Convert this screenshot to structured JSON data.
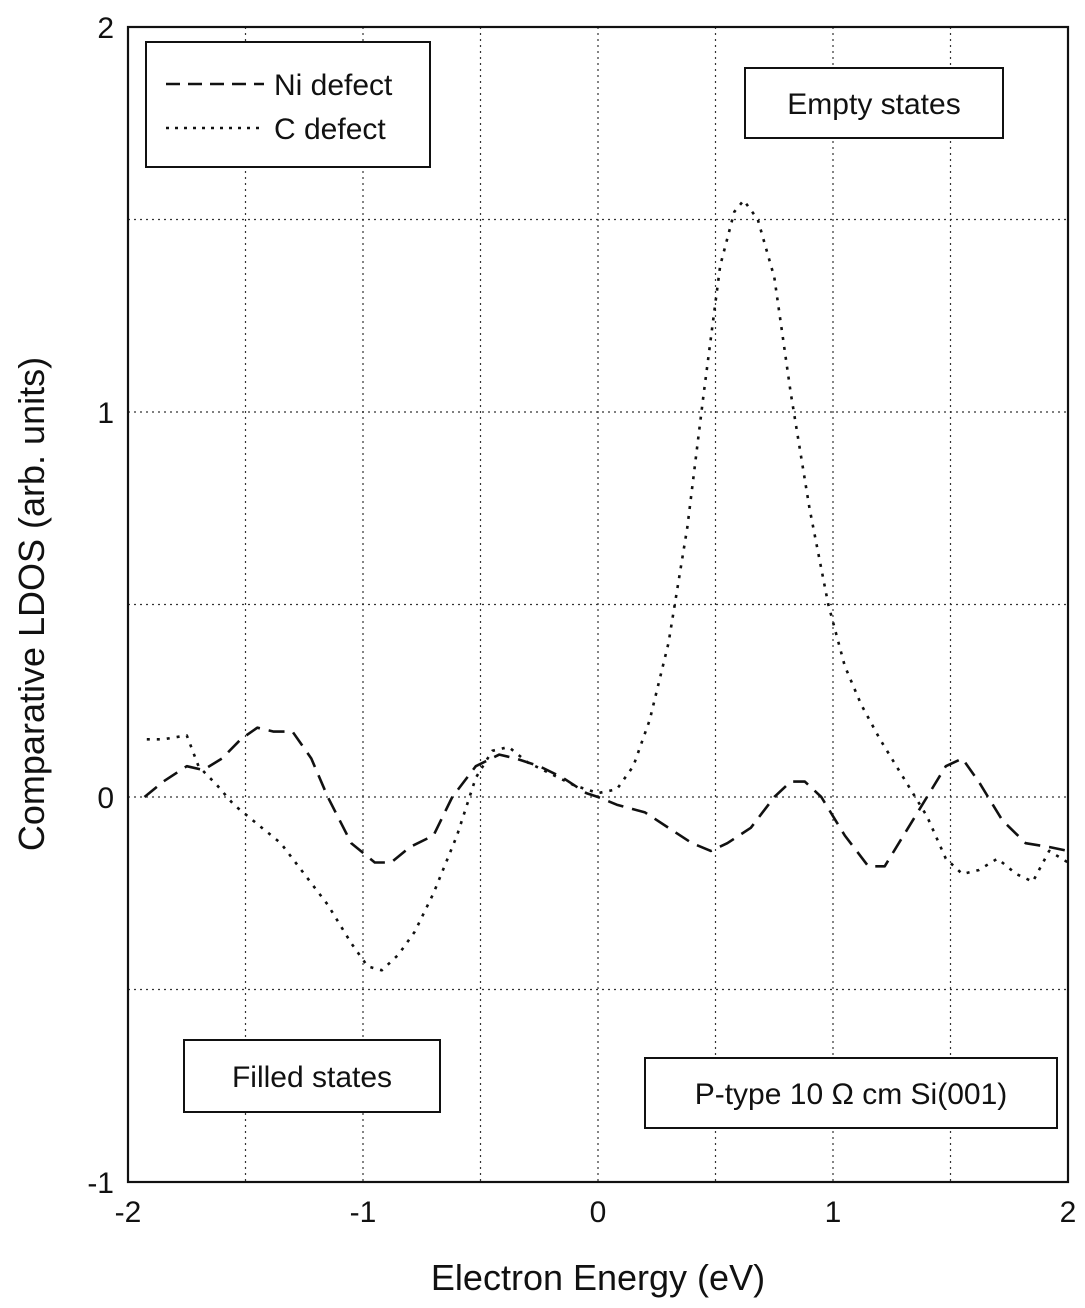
{
  "chart_data": {
    "type": "line",
    "title": "",
    "xlabel": "Electron Energy  (eV)",
    "ylabel": "Comparative LDOS  (arb. units)",
    "xlim": [
      -2,
      2
    ],
    "ylim": [
      -1,
      2
    ],
    "x_ticks": [
      -2,
      -1,
      0,
      1,
      2
    ],
    "y_ticks": [
      -1,
      0,
      1,
      2
    ],
    "x_tick_labels": [
      "-2",
      "-1",
      "0",
      "1",
      "2"
    ],
    "y_tick_labels": [
      "-1",
      "0",
      "1",
      "2"
    ],
    "grid": true,
    "grid_x_step": 0.5,
    "grid_y_step": 0.5,
    "legend_position": "top-left",
    "series": [
      {
        "name": "Ni defect",
        "style": "dashed",
        "points": [
          [
            -1.93,
            0.0
          ],
          [
            -1.85,
            0.04
          ],
          [
            -1.75,
            0.08
          ],
          [
            -1.68,
            0.07
          ],
          [
            -1.6,
            0.1
          ],
          [
            -1.52,
            0.15
          ],
          [
            -1.45,
            0.18
          ],
          [
            -1.38,
            0.17
          ],
          [
            -1.3,
            0.17
          ],
          [
            -1.22,
            0.1
          ],
          [
            -1.15,
            0.0
          ],
          [
            -1.05,
            -0.12
          ],
          [
            -0.95,
            -0.17
          ],
          [
            -0.88,
            -0.17
          ],
          [
            -0.8,
            -0.13
          ],
          [
            -0.7,
            -0.1
          ],
          [
            -0.62,
            0.0
          ],
          [
            -0.52,
            0.08
          ],
          [
            -0.42,
            0.11
          ],
          [
            -0.35,
            0.1
          ],
          [
            -0.25,
            0.08
          ],
          [
            -0.15,
            0.05
          ],
          [
            -0.05,
            0.01
          ],
          [
            0.0,
            0.0
          ],
          [
            0.08,
            -0.02
          ],
          [
            0.2,
            -0.04
          ],
          [
            0.3,
            -0.08
          ],
          [
            0.4,
            -0.12
          ],
          [
            0.48,
            -0.14
          ],
          [
            0.55,
            -0.12
          ],
          [
            0.65,
            -0.08
          ],
          [
            0.75,
            0.0
          ],
          [
            0.82,
            0.04
          ],
          [
            0.88,
            0.04
          ],
          [
            0.95,
            0.0
          ],
          [
            1.05,
            -0.1
          ],
          [
            1.15,
            -0.18
          ],
          [
            1.22,
            -0.18
          ],
          [
            1.3,
            -0.1
          ],
          [
            1.4,
            0.0
          ],
          [
            1.48,
            0.08
          ],
          [
            1.55,
            0.1
          ],
          [
            1.62,
            0.04
          ],
          [
            1.72,
            -0.06
          ],
          [
            1.82,
            -0.12
          ],
          [
            1.92,
            -0.13
          ],
          [
            2.0,
            -0.14
          ]
        ]
      },
      {
        "name": "C defect",
        "style": "dotted",
        "points": [
          [
            -1.92,
            0.15
          ],
          [
            -1.85,
            0.15
          ],
          [
            -1.75,
            0.16
          ],
          [
            -1.7,
            0.08
          ],
          [
            -1.62,
            0.03
          ],
          [
            -1.55,
            -0.02
          ],
          [
            -1.45,
            -0.07
          ],
          [
            -1.35,
            -0.12
          ],
          [
            -1.25,
            -0.2
          ],
          [
            -1.15,
            -0.28
          ],
          [
            -1.05,
            -0.38
          ],
          [
            -0.98,
            -0.44
          ],
          [
            -0.92,
            -0.45
          ],
          [
            -0.85,
            -0.41
          ],
          [
            -0.78,
            -0.35
          ],
          [
            -0.7,
            -0.25
          ],
          [
            -0.6,
            -0.1
          ],
          [
            -0.52,
            0.05
          ],
          [
            -0.45,
            0.12
          ],
          [
            -0.38,
            0.13
          ],
          [
            -0.3,
            0.09
          ],
          [
            -0.2,
            0.06
          ],
          [
            -0.1,
            0.03
          ],
          [
            0.0,
            0.01
          ],
          [
            0.08,
            0.02
          ],
          [
            0.15,
            0.08
          ],
          [
            0.22,
            0.2
          ],
          [
            0.3,
            0.4
          ],
          [
            0.38,
            0.7
          ],
          [
            0.45,
            1.05
          ],
          [
            0.52,
            1.38
          ],
          [
            0.58,
            1.52
          ],
          [
            0.62,
            1.55
          ],
          [
            0.68,
            1.5
          ],
          [
            0.75,
            1.35
          ],
          [
            0.82,
            1.05
          ],
          [
            0.9,
            0.75
          ],
          [
            0.98,
            0.5
          ],
          [
            1.05,
            0.34
          ],
          [
            1.12,
            0.24
          ],
          [
            1.2,
            0.15
          ],
          [
            1.3,
            0.05
          ],
          [
            1.4,
            -0.05
          ],
          [
            1.48,
            -0.16
          ],
          [
            1.55,
            -0.2
          ],
          [
            1.62,
            -0.19
          ],
          [
            1.7,
            -0.16
          ],
          [
            1.78,
            -0.2
          ],
          [
            1.85,
            -0.22
          ],
          [
            1.92,
            -0.14
          ],
          [
            2.0,
            -0.17
          ]
        ]
      }
    ],
    "annotations": [
      "Empty states",
      "Filled states",
      "P-type 10 Ω cm Si(001)"
    ]
  }
}
